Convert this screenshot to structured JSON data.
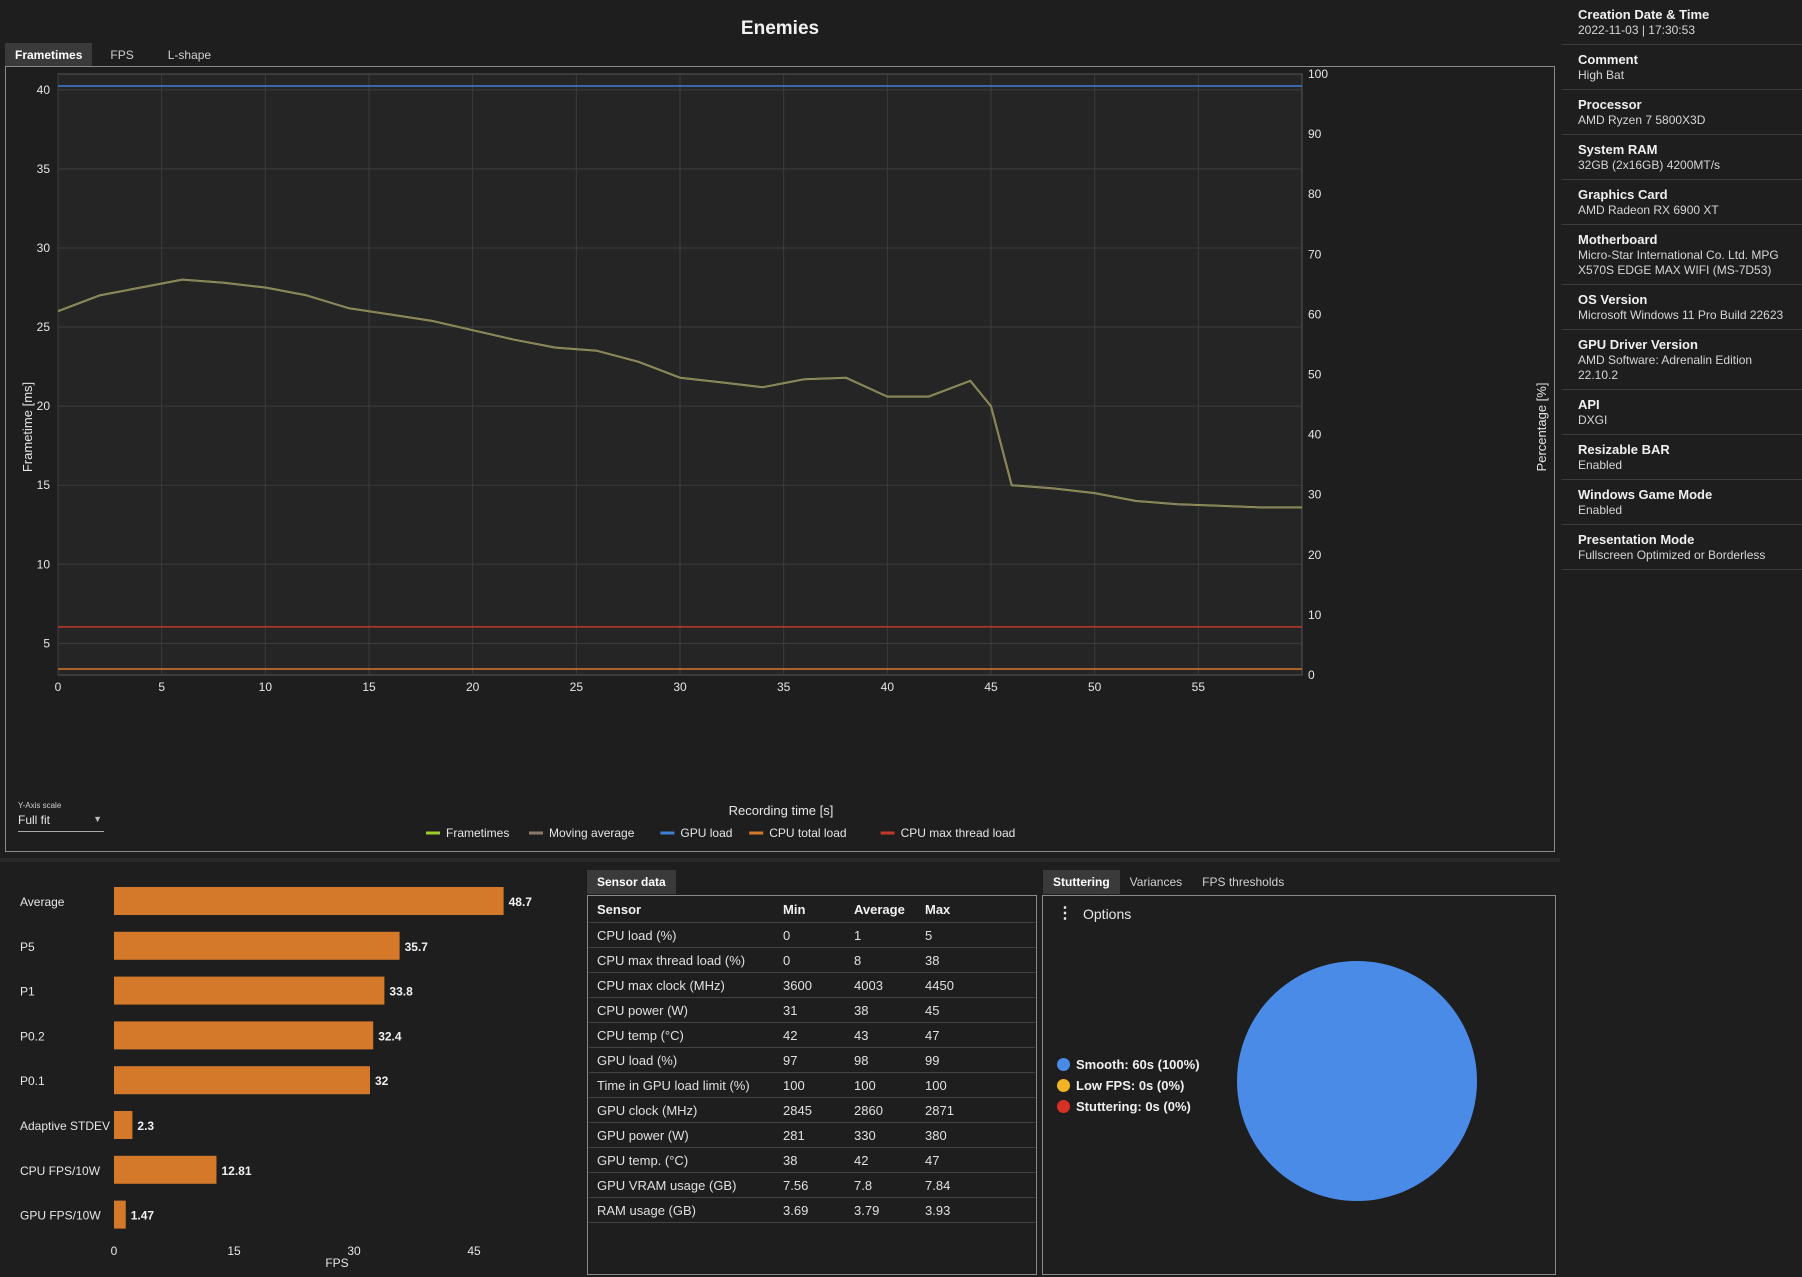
{
  "title": "Enemies",
  "tabs": [
    "Frametimes",
    "FPS",
    "L-shape"
  ],
  "chart_data": [
    {
      "type": "line",
      "title": "Enemies",
      "xlabel": "Recording time [s]",
      "ylabel": "Frametime [ms]",
      "y2label": "Percentage [%]",
      "xlim": [
        0,
        60
      ],
      "ylim": [
        3,
        41
      ],
      "y2lim": [
        0,
        100
      ],
      "xticks": [
        0,
        5,
        10,
        15,
        20,
        25,
        30,
        35,
        40,
        45,
        50,
        55
      ],
      "yticks": [
        5,
        10,
        15,
        20,
        25,
        30,
        35,
        40
      ],
      "y2ticks": [
        0,
        10,
        20,
        30,
        40,
        50,
        60,
        70,
        80,
        90,
        100
      ],
      "legend": [
        "Frametimes",
        "Moving average",
        "GPU load",
        "CPU total load",
        "CPU max thread load"
      ],
      "series": [
        {
          "name": "Frametimes",
          "axis": "left",
          "color": "#9ccc2d",
          "x": [
            0,
            2,
            4,
            6,
            8,
            10,
            12,
            14,
            16,
            18,
            20,
            22,
            24,
            26,
            28,
            30,
            32,
            34,
            36,
            38,
            40,
            42,
            44,
            45,
            46,
            48,
            50,
            52,
            54,
            56,
            58,
            60
          ],
          "y": [
            26,
            27,
            27.5,
            28,
            27.8,
            27.5,
            27,
            26.2,
            25.8,
            25.4,
            24.8,
            24.2,
            23.7,
            23.5,
            22.8,
            21.8,
            21.5,
            21.2,
            21.7,
            21.8,
            20.6,
            20.6,
            21.6,
            20,
            15,
            14.8,
            14.5,
            14,
            13.8,
            13.7,
            13.6,
            13.6
          ]
        },
        {
          "name": "Moving average",
          "axis": "left",
          "color": "#8c7a6b",
          "x": [
            0,
            2,
            4,
            6,
            8,
            10,
            12,
            14,
            16,
            18,
            20,
            22,
            24,
            26,
            28,
            30,
            32,
            34,
            36,
            38,
            40,
            42,
            44,
            45,
            46,
            48,
            50,
            52,
            54,
            56,
            58,
            60
          ],
          "y": [
            26,
            27,
            27.5,
            28,
            27.8,
            27.5,
            27,
            26.2,
            25.8,
            25.4,
            24.8,
            24.2,
            23.7,
            23.5,
            22.8,
            21.8,
            21.5,
            21.2,
            21.7,
            21.8,
            20.6,
            20.6,
            21.6,
            20,
            15,
            14.8,
            14.5,
            14,
            13.8,
            13.7,
            13.6,
            13.6
          ]
        },
        {
          "name": "GPU load",
          "axis": "right",
          "color": "#3f7fd6",
          "x": [
            0,
            5,
            10,
            15,
            20,
            25,
            30,
            35,
            40,
            45,
            50,
            55,
            60
          ],
          "y": [
            98,
            98,
            98,
            98,
            98,
            98,
            98,
            98,
            98,
            98,
            98,
            98,
            98
          ]
        },
        {
          "name": "CPU total load",
          "axis": "right",
          "color": "#d4782a",
          "x": [
            0,
            5,
            10,
            15,
            20,
            25,
            30,
            35,
            40,
            45,
            50,
            55,
            60
          ],
          "y": [
            1,
            1,
            1,
            1,
            1,
            1,
            1,
            1,
            1,
            1,
            1,
            1,
            1
          ]
        },
        {
          "name": "CPU max thread load",
          "axis": "right",
          "color": "#c0392b",
          "x": [
            0,
            5,
            10,
            15,
            20,
            25,
            30,
            35,
            40,
            45,
            50,
            55,
            60
          ],
          "y": [
            8,
            8,
            8,
            8,
            8,
            8,
            8,
            8,
            8,
            8,
            8,
            8,
            8
          ]
        }
      ]
    },
    {
      "type": "bar",
      "orientation": "horizontal",
      "xlabel": "FPS",
      "xlim": [
        0,
        60
      ],
      "xticks": [
        0,
        15,
        30,
        45
      ],
      "categories": [
        "Average",
        "P5",
        "P1",
        "P0.2",
        "P0.1",
        "Adaptive STDEV",
        "CPU FPS/10W",
        "GPU FPS/10W"
      ],
      "values": [
        48.7,
        35.7,
        33.8,
        32.4,
        32,
        2.3,
        12.81,
        1.47
      ],
      "labels": [
        "48.7",
        "35.7",
        "33.8",
        "32.4",
        "32",
        "2.3",
        "12.81",
        "1.47"
      ],
      "color": "#d4782a"
    },
    {
      "type": "pie",
      "slices": [
        {
          "label": "Smooth:  60s (100%)",
          "value": 100,
          "color": "#4a8be8"
        },
        {
          "label": "Low FPS:  0s (0%)",
          "value": 0,
          "color": "#f0b323"
        },
        {
          "label": "Stuttering:  0s (0%)",
          "value": 0,
          "color": "#d93025"
        }
      ]
    }
  ],
  "y_axis_scale": {
    "label": "Y-Axis scale",
    "value": "Full fit"
  },
  "sensor": {
    "tab": "Sensor data",
    "headers": [
      "Sensor",
      "Min",
      "Average",
      "Max"
    ],
    "rows": [
      [
        "CPU load (%)",
        "0",
        "1",
        "5"
      ],
      [
        "CPU max thread load (%)",
        "0",
        "8",
        "38"
      ],
      [
        "CPU max clock (MHz)",
        "3600",
        "4003",
        "4450"
      ],
      [
        "CPU power (W)",
        "31",
        "38",
        "45"
      ],
      [
        "CPU temp (°C)",
        "42",
        "43",
        "47"
      ],
      [
        "GPU load (%)",
        "97",
        "98",
        "99"
      ],
      [
        "Time in GPU load limit (%)",
        "100",
        "100",
        "100"
      ],
      [
        "GPU clock (MHz)",
        "2845",
        "2860",
        "2871"
      ],
      [
        "GPU power (W)",
        "281",
        "330",
        "380"
      ],
      [
        "GPU temp. (°C)",
        "38",
        "42",
        "47"
      ],
      [
        "GPU VRAM usage (GB)",
        "7.56",
        "7.8",
        "7.84"
      ],
      [
        "RAM usage (GB)",
        "3.69",
        "3.79",
        "3.93"
      ]
    ]
  },
  "stutter_tabs": [
    "Stuttering",
    "Variances",
    "FPS thresholds"
  ],
  "options_label": "Options",
  "info": [
    {
      "label": "Creation Date & Time",
      "value": "2022-11-03  |  17:30:53"
    },
    {
      "label": "Comment",
      "value": "High Bat"
    },
    {
      "label": "Processor",
      "value": "AMD Ryzen 7 5800X3D"
    },
    {
      "label": "System RAM",
      "value": "32GB (2x16GB) 4200MT/s"
    },
    {
      "label": "Graphics Card",
      "value": "AMD Radeon RX 6900 XT"
    },
    {
      "label": "Motherboard",
      "value": "Micro-Star International Co. Ltd. MPG X570S EDGE MAX WIFI (MS-7D53)"
    },
    {
      "label": "OS Version",
      "value": "Microsoft Windows 11 Pro Build 22623"
    },
    {
      "label": "GPU Driver Version",
      "value": "AMD Software: Adrenalin Edition 22.10.2"
    },
    {
      "label": "API",
      "value": "DXGI"
    },
    {
      "label": "Resizable BAR",
      "value": "Enabled"
    },
    {
      "label": "Windows Game Mode",
      "value": "Enabled"
    },
    {
      "label": "Presentation Mode",
      "value": "Fullscreen Optimized or Borderless"
    }
  ]
}
